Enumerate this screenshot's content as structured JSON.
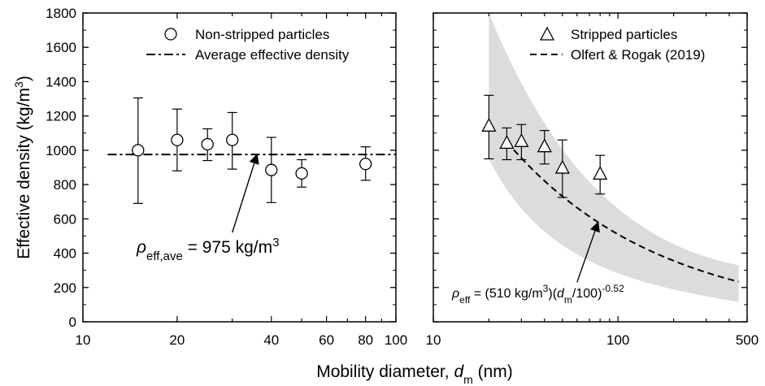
{
  "xlabel": {
    "main": "Mobility diameter, ",
    "var": "d",
    "sub": "m",
    "unit": " (nm)"
  },
  "ylabel": {
    "main": "Effective density (kg/m",
    "sup": "3",
    "close": ")"
  },
  "y_ticks": [
    "0",
    "200",
    "400",
    "600",
    "800",
    "1000",
    "1200",
    "1400",
    "1600",
    "1800"
  ],
  "chart_data": [
    {
      "type": "scatter",
      "panel": "left",
      "xscale": "log",
      "xlim": [
        10,
        100
      ],
      "ylim": [
        0,
        1800
      ],
      "x_tick_labels": [
        "10",
        "20",
        "40",
        "60",
        "80",
        "100"
      ],
      "legend_placement": "top-right",
      "series": [
        {
          "name": "Non-stripped particles",
          "marker": "circle",
          "points": [
            {
              "x": 15,
              "y": 1000,
              "lo": 690,
              "hi": 1305
            },
            {
              "x": 20,
              "y": 1060,
              "lo": 880,
              "hi": 1240
            },
            {
              "x": 25,
              "y": 1035,
              "lo": 940,
              "hi": 1125
            },
            {
              "x": 30,
              "y": 1060,
              "lo": 890,
              "hi": 1220
            },
            {
              "x": 40,
              "y": 885,
              "lo": 695,
              "hi": 1075
            },
            {
              "x": 50,
              "y": 865,
              "lo": 785,
              "hi": 945
            },
            {
              "x": 80,
              "y": 920,
              "lo": 825,
              "hi": 1020
            }
          ]
        },
        {
          "name": "Average effective density",
          "style": "dash-dot",
          "line": {
            "x": [
              12,
              100
            ],
            "y": [
              975,
              975
            ]
          }
        }
      ],
      "annotation": {
        "symbol": "ρ",
        "sub": "eff,ave",
        "text": " = 975 kg/m",
        "sup": "3",
        "arrow_to": {
          "x": 36,
          "y": 975
        },
        "arrow_from": {
          "x": 30,
          "y": 520
        }
      }
    },
    {
      "type": "scatter",
      "panel": "right",
      "xscale": "log",
      "xlim": [
        10,
        500
      ],
      "ylim": [
        0,
        1800
      ],
      "x_tick_labels": [
        "10",
        "100",
        "500"
      ],
      "legend_placement": "top-right",
      "series": [
        {
          "name": "Stripped particles",
          "marker": "triangle",
          "points": [
            {
              "x": 20,
              "y": 1140,
              "lo": 950,
              "hi": 1320
            },
            {
              "x": 25,
              "y": 1040,
              "lo": 945,
              "hi": 1130
            },
            {
              "x": 30,
              "y": 1050,
              "lo": 945,
              "hi": 1150
            },
            {
              "x": 40,
              "y": 1020,
              "lo": 920,
              "hi": 1115
            },
            {
              "x": 50,
              "y": 895,
              "lo": 725,
              "hi": 1060
            },
            {
              "x": 80,
              "y": 860,
              "lo": 745,
              "hi": 970
            }
          ]
        },
        {
          "name": "Olfert & Rogak (2019)",
          "style": "dashed",
          "model": {
            "coef": 510,
            "ref": 100,
            "exp": -0.52,
            "x_range": [
              25,
              450
            ]
          }
        }
      ],
      "band": {
        "fill": "#dcdcdc",
        "x_range": [
          20,
          450
        ],
        "upper_y_at_start": 1800,
        "upper_y_at_end": 330,
        "lower_y_at_start": 950,
        "lower_y_at_end": 115
      },
      "annotation": {
        "symbol": "ρ",
        "sub": "eff",
        "text": " = (510 kg/m",
        "sup": "3",
        "mid": ")(",
        "var": "d",
        "var_sub": "m",
        "tail": "/100)",
        "exp": "-0.52",
        "arrow_to": {
          "x": 78,
          "y": 580
        },
        "arrow_from": {
          "x": 60,
          "y": 230
        }
      }
    }
  ]
}
